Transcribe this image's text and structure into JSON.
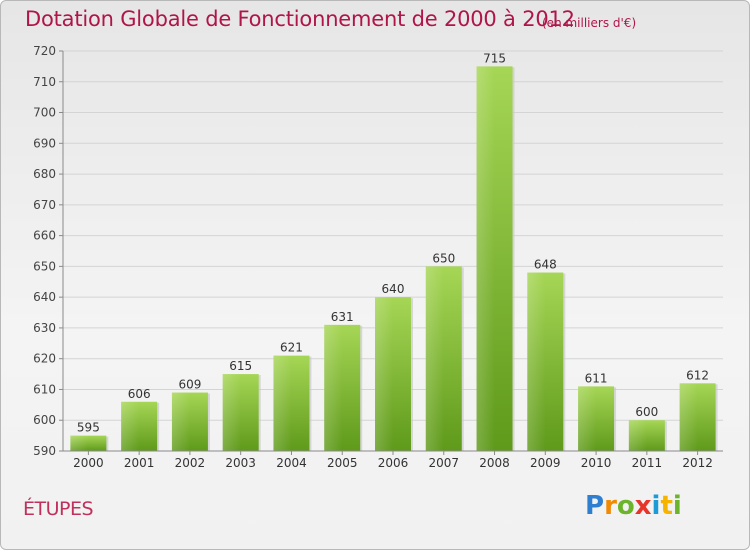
{
  "chart_data": {
    "type": "bar",
    "title": "Dotation Globale de Fonctionnement de 2000 à 2012",
    "subtitle": "(en milliers d'€)",
    "categories": [
      "2000",
      "2001",
      "2002",
      "2003",
      "2004",
      "2005",
      "2006",
      "2007",
      "2008",
      "2009",
      "2010",
      "2011",
      "2012"
    ],
    "values": [
      595,
      606,
      609,
      615,
      621,
      631,
      640,
      650,
      715,
      648,
      611,
      600,
      612
    ],
    "ylim": [
      590,
      720
    ],
    "yticks": [
      590,
      600,
      610,
      620,
      630,
      640,
      650,
      660,
      670,
      680,
      690,
      700,
      710,
      720
    ],
    "xlabel": "",
    "ylabel": "",
    "grid": true,
    "bar_color_top": "#a1d34f",
    "bar_color_bottom": "#5f9a1b"
  },
  "commune": "ÉTUPES",
  "logo": "Proxiti",
  "colors": {
    "title": "#b0154a",
    "commune": "#c0305b"
  }
}
